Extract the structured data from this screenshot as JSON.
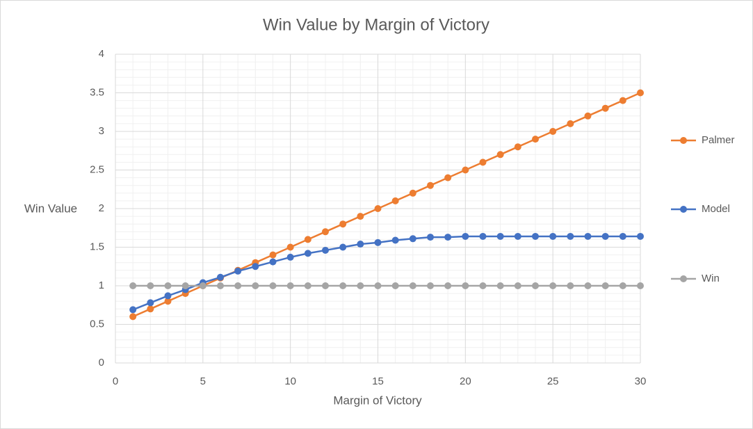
{
  "chart_data": {
    "type": "line",
    "title": "Win Value by Margin of Victory",
    "x_label": "Margin of Victory",
    "y_label": "Win Value",
    "x": [
      1,
      2,
      3,
      4,
      5,
      6,
      7,
      8,
      9,
      10,
      11,
      12,
      13,
      14,
      15,
      16,
      17,
      18,
      19,
      20,
      21,
      22,
      23,
      24,
      25,
      26,
      27,
      28,
      29,
      30
    ],
    "series": [
      {
        "name": "Palmer",
        "color": "#ed7d31",
        "values": [
          0.6,
          0.7,
          0.8,
          0.9,
          1.0,
          1.1,
          1.2,
          1.3,
          1.4,
          1.5,
          1.6,
          1.7,
          1.8,
          1.9,
          2.0,
          2.1,
          2.2,
          2.3,
          2.4,
          2.5,
          2.6,
          2.7,
          2.8,
          2.9,
          3.0,
          3.1,
          3.2,
          3.3,
          3.4,
          3.5
        ]
      },
      {
        "name": "Model",
        "color": "#4472c4",
        "values": [
          0.69,
          0.78,
          0.87,
          0.95,
          1.04,
          1.11,
          1.19,
          1.25,
          1.31,
          1.37,
          1.42,
          1.46,
          1.5,
          1.54,
          1.56,
          1.59,
          1.61,
          1.63,
          1.63,
          1.64,
          1.64,
          1.64,
          1.64,
          1.64,
          1.64,
          1.64,
          1.64,
          1.64,
          1.64,
          1.64
        ]
      },
      {
        "name": "Win",
        "color": "#a5a5a5",
        "values": [
          1,
          1,
          1,
          1,
          1,
          1,
          1,
          1,
          1,
          1,
          1,
          1,
          1,
          1,
          1,
          1,
          1,
          1,
          1,
          1,
          1,
          1,
          1,
          1,
          1,
          1,
          1,
          1,
          1,
          1
        ]
      }
    ],
    "xlim": [
      0,
      30
    ],
    "xticks": [
      0,
      5,
      10,
      15,
      20,
      25,
      30
    ],
    "ylim": [
      0,
      4
    ],
    "yticks": [
      0,
      0.5,
      1,
      1.5,
      2,
      2.5,
      3,
      3.5,
      4
    ],
    "grid": true,
    "minor_grid": true,
    "legend": "right"
  }
}
